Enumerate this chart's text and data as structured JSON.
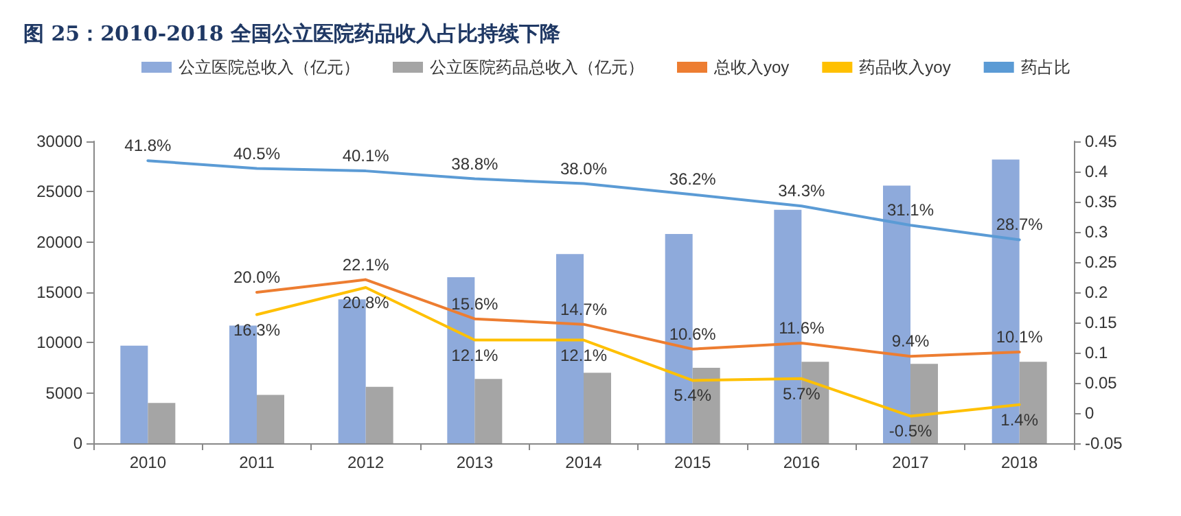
{
  "chart_data": {
    "type": "bar",
    "title": "图 25：2010-2018 全国公立医院药品收入占比持续下降",
    "categories": [
      "2010",
      "2011",
      "2012",
      "2013",
      "2014",
      "2015",
      "2016",
      "2017",
      "2018"
    ],
    "series": [
      {
        "name": "公立医院总收入（亿元）",
        "color": "#8eaadb",
        "values": [
          9700,
          11700,
          14300,
          16500,
          18800,
          20800,
          23200,
          25600,
          28200
        ]
      },
      {
        "name": "公立医院药品总收入（亿元）",
        "color": "#a5a5a5",
        "values": [
          4000,
          4800,
          5600,
          6400,
          7000,
          7500,
          8100,
          7900,
          8100
        ]
      },
      {
        "name": "总收入yoy",
        "type": "line",
        "axis": "y2",
        "color": "#ed7d31",
        "values": [
          null,
          0.2,
          0.221,
          0.156,
          0.147,
          0.106,
          0.116,
          0.094,
          0.101
        ],
        "value_labels": [
          null,
          "20.0%",
          "22.1%",
          "15.6%",
          "14.7%",
          "10.6%",
          "11.6%",
          "9.4%",
          "10.1%"
        ]
      },
      {
        "name": "药品收入yoy",
        "type": "line",
        "axis": "y2",
        "color": "#ffc000",
        "values": [
          null,
          0.163,
          0.208,
          0.121,
          0.121,
          0.054,
          0.057,
          -0.005,
          0.014
        ],
        "value_labels": [
          null,
          "16.3%",
          "20.8%",
          "12.1%",
          "12.1%",
          "5.4%",
          "5.7%",
          "-0.5%",
          "1.4%"
        ]
      },
      {
        "name": "药占比",
        "type": "line",
        "axis": "y2",
        "color": "#5b9bd5",
        "values": [
          0.418,
          0.405,
          0.401,
          0.388,
          0.38,
          0.362,
          0.343,
          0.311,
          0.287
        ],
        "value_labels": [
          "41.8%",
          "40.5%",
          "40.1%",
          "38.8%",
          "38.0%",
          "36.2%",
          "34.3%",
          "31.1%",
          "28.7%"
        ]
      }
    ],
    "ylim": [
      0,
      30000
    ],
    "yticks": [
      0,
      5000,
      10000,
      15000,
      20000,
      25000,
      30000
    ],
    "y2lim": [
      -0.05,
      0.45
    ],
    "y2ticks": [
      -0.05,
      0,
      0.05,
      0.1,
      0.15,
      0.2,
      0.25,
      0.3,
      0.35,
      0.4,
      0.45
    ],
    "grid": false,
    "legend": "top",
    "marker": "none"
  }
}
